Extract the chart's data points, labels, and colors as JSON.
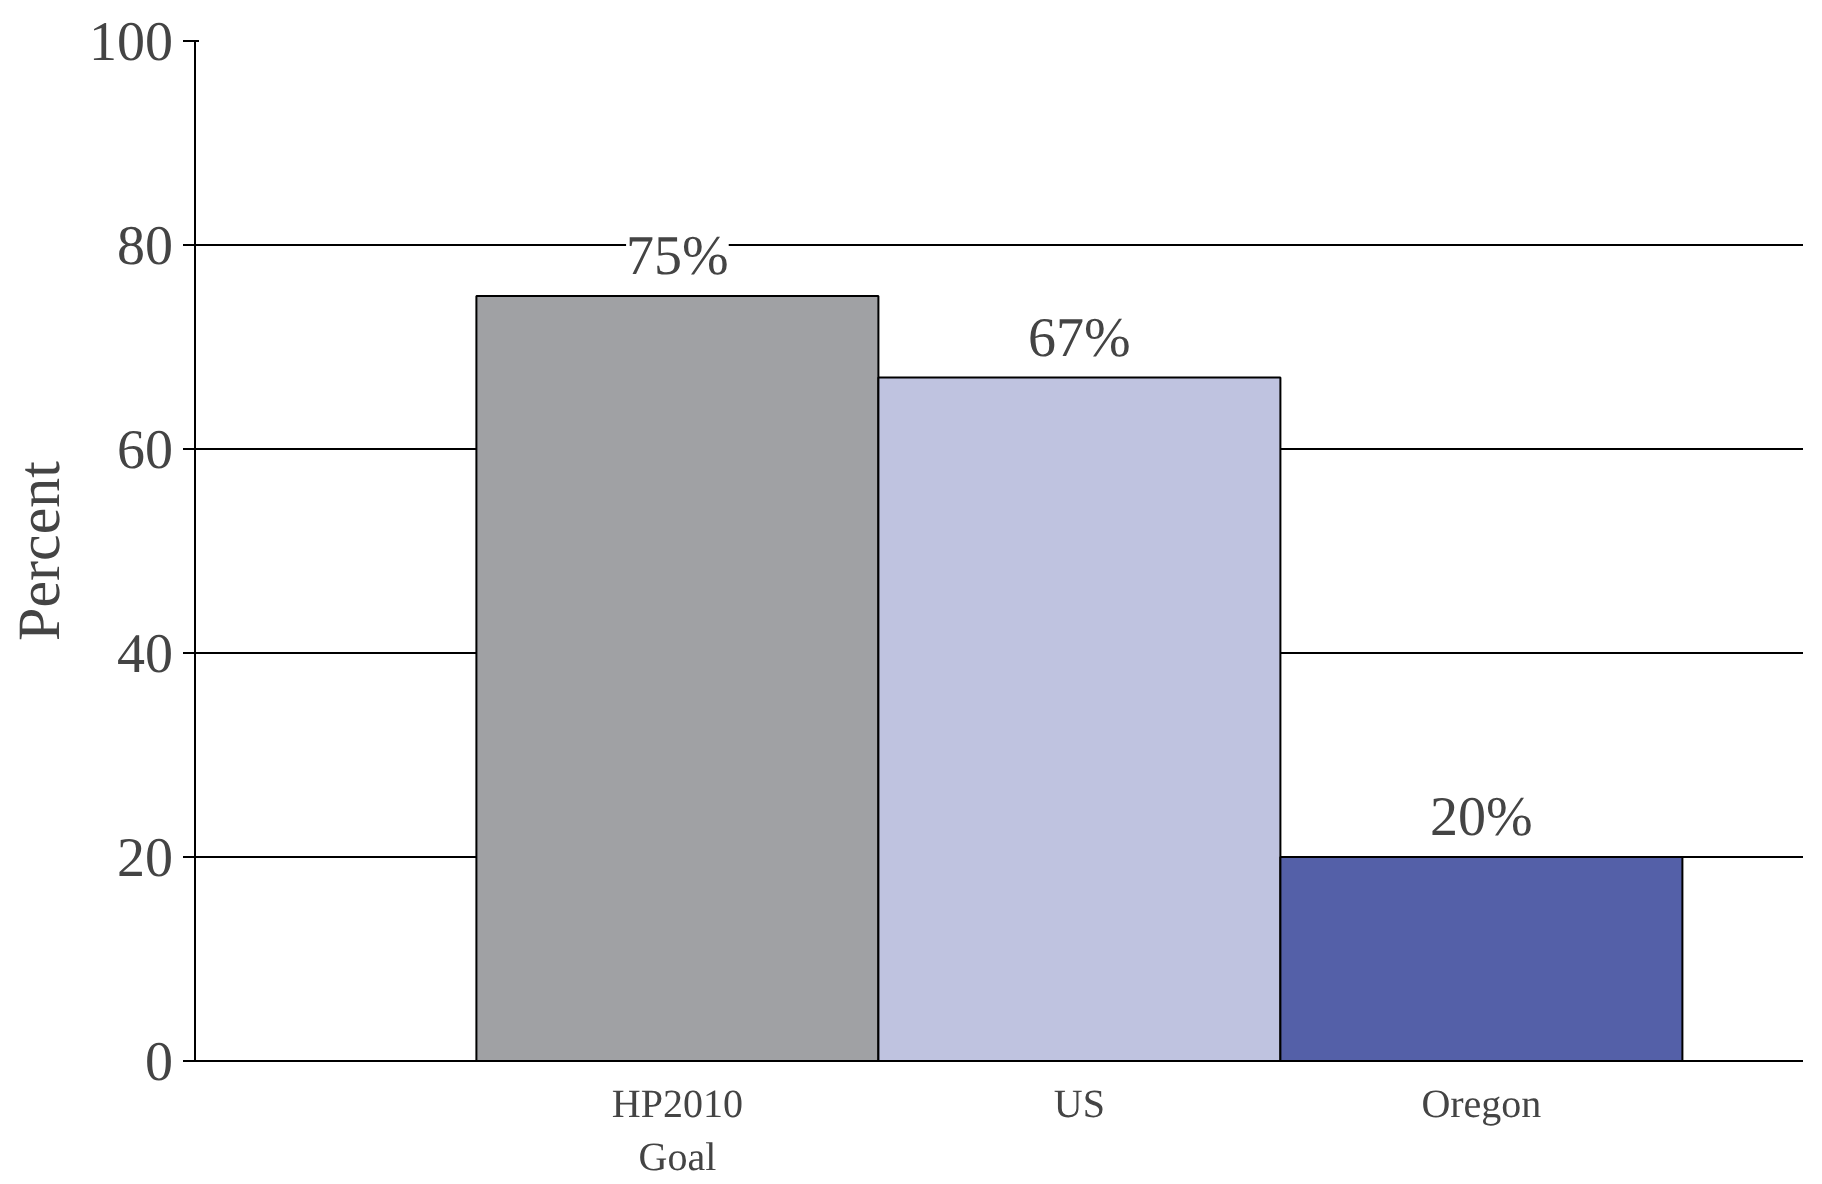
{
  "chart_data": {
    "type": "bar",
    "ylabel": "Percent",
    "categories": [
      "HP2010\nGoal",
      "US",
      "Oregon"
    ],
    "values": [
      75,
      67,
      20
    ],
    "colors": [
      "#a0a1a4",
      "#bfc3e0",
      "#5460a8"
    ],
    "value_labels": [
      "75%",
      "67%",
      "20%"
    ],
    "ylim": [
      0,
      100
    ],
    "yticks": [
      0,
      20,
      40,
      60,
      80,
      100
    ],
    "grid": "y"
  }
}
